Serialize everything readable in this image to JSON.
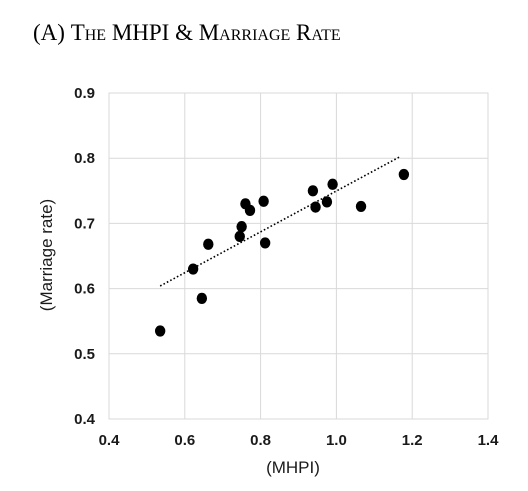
{
  "panel": {
    "label": "(A)",
    "title": "The MHPI & Marriage Rate"
  },
  "chart_data": {
    "type": "scatter",
    "title": "(A) The MHPI & Marriage Rate",
    "xlabel": "(MHPI)",
    "ylabel": "(Marriage rate)",
    "xlim": [
      0.4,
      1.4
    ],
    "ylim": [
      0.4,
      0.9
    ],
    "xticks": [
      0.4,
      0.6,
      0.8,
      1.0,
      1.2,
      1.4
    ],
    "xtick_labels": [
      "0.4",
      "0.6",
      "0.8",
      "1.0",
      "1.2",
      "1.4"
    ],
    "yticks": [
      0.4,
      0.5,
      0.6,
      0.7,
      0.8,
      0.9
    ],
    "ytick_labels": [
      "0.4",
      "0.5",
      "0.6",
      "0.7",
      "0.8",
      "0.9"
    ],
    "grid": true,
    "series": [
      {
        "points": [
          {
            "x": 0.535,
            "y": 0.535
          },
          {
            "x": 0.622,
            "y": 0.63
          },
          {
            "x": 0.645,
            "y": 0.585
          },
          {
            "x": 0.662,
            "y": 0.668
          },
          {
            "x": 0.745,
            "y": 0.68
          },
          {
            "x": 0.75,
            "y": 0.695
          },
          {
            "x": 0.76,
            "y": 0.73
          },
          {
            "x": 0.772,
            "y": 0.72
          },
          {
            "x": 0.808,
            "y": 0.734
          },
          {
            "x": 0.812,
            "y": 0.67
          },
          {
            "x": 0.938,
            "y": 0.75
          },
          {
            "x": 0.945,
            "y": 0.725
          },
          {
            "x": 0.975,
            "y": 0.733
          },
          {
            "x": 0.99,
            "y": 0.76
          },
          {
            "x": 1.065,
            "y": 0.726
          },
          {
            "x": 1.178,
            "y": 0.775
          }
        ]
      }
    ],
    "trendline": {
      "style": "dotted",
      "points": [
        {
          "x": 0.535,
          "y": 0.604
        },
        {
          "x": 1.17,
          "y": 0.803
        }
      ]
    },
    "colors": {
      "marker": "#000000",
      "grid": "#d9d9d9",
      "trendline": "#000000"
    }
  }
}
